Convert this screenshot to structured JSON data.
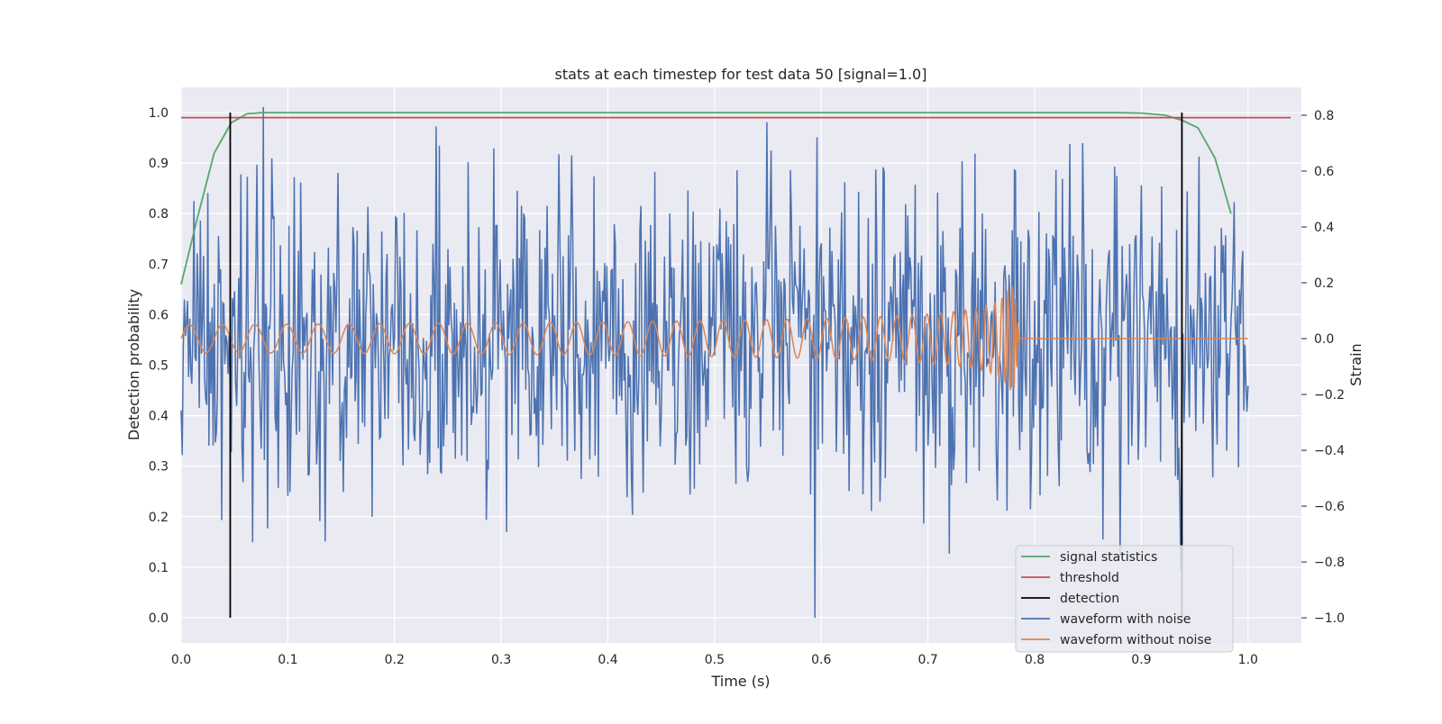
{
  "chart_data": {
    "type": "line",
    "title": "stats at each timestep for test data 50 [signal=1.0]",
    "xlabel": "Time (s)",
    "ylabel": "Detection probability",
    "ylabel2": "Strain",
    "xlim": [
      0.0,
      1.05
    ],
    "ylim": [
      -0.05,
      1.05
    ],
    "ylim2": [
      -1.09,
      0.9
    ],
    "x_ticks": [
      "0.0",
      "0.1",
      "0.2",
      "0.3",
      "0.4",
      "0.5",
      "0.6",
      "0.7",
      "0.8",
      "0.9",
      "1.0"
    ],
    "y_ticks": [
      "0.0",
      "0.1",
      "0.2",
      "0.3",
      "0.4",
      "0.5",
      "0.6",
      "0.7",
      "0.8",
      "0.9",
      "1.0"
    ],
    "y2_ticks": [
      "−1.0",
      "−0.8",
      "−0.6",
      "−0.4",
      "−0.2",
      "0.0",
      "0.2",
      "0.4",
      "0.6",
      "0.8"
    ],
    "grid": true,
    "legend_position": "lower-right",
    "series": [
      {
        "name": "signal statistics",
        "axis": "left",
        "color": "#55a868",
        "x": [
          0.0,
          0.015,
          0.031,
          0.047,
          0.062,
          0.078,
          0.1,
          0.2,
          0.3,
          0.4,
          0.5,
          0.6,
          0.7,
          0.8,
          0.875,
          0.9,
          0.922,
          0.938,
          0.953,
          0.969,
          0.984
        ],
        "y": [
          0.66,
          0.79,
          0.92,
          0.98,
          0.998,
          1.0,
          1.0,
          1.0,
          1.0,
          1.0,
          1.0,
          1.0,
          1.0,
          1.0,
          1.0,
          0.999,
          0.995,
          0.985,
          0.97,
          0.91,
          0.8
        ]
      },
      {
        "name": "threshold",
        "axis": "left",
        "color": "#c44e52",
        "x": [
          0.0,
          1.04
        ],
        "y": [
          0.99,
          0.99
        ]
      },
      {
        "name": "detection",
        "axis": "left",
        "color": "#000000",
        "x_positions": [
          0.046,
          0.938
        ],
        "y": [
          0.0,
          1.0
        ]
      },
      {
        "name": "waveform with noise",
        "axis": "right",
        "color": "#4c72b0",
        "x_range": [
          0.0,
          1.0
        ],
        "amplitude_range": [
          -1.0,
          0.82
        ],
        "peaks": [
          {
            "x": 0.038,
            "y": -0.65
          },
          {
            "x": 0.077,
            "y": 0.83
          },
          {
            "x": 0.081,
            "y": -0.68
          },
          {
            "x": 0.239,
            "y": 0.76
          },
          {
            "x": 0.354,
            "y": 0.66
          },
          {
            "x": 0.594,
            "y": -1.0
          },
          {
            "x": 0.72,
            "y": -0.77
          },
          {
            "x": 0.864,
            "y": -0.72
          },
          {
            "x": 0.88,
            "y": -0.78
          },
          {
            "x": 0.937,
            "y": -0.83
          }
        ]
      },
      {
        "name": "waveform without noise",
        "axis": "right",
        "color": "#dd8452",
        "x_range": [
          0.0,
          1.0
        ],
        "chirp_peak_time": 0.78,
        "amplitude_start": 0.05,
        "amplitude_peak": 0.22,
        "flat_after": 0.0
      }
    ]
  }
}
